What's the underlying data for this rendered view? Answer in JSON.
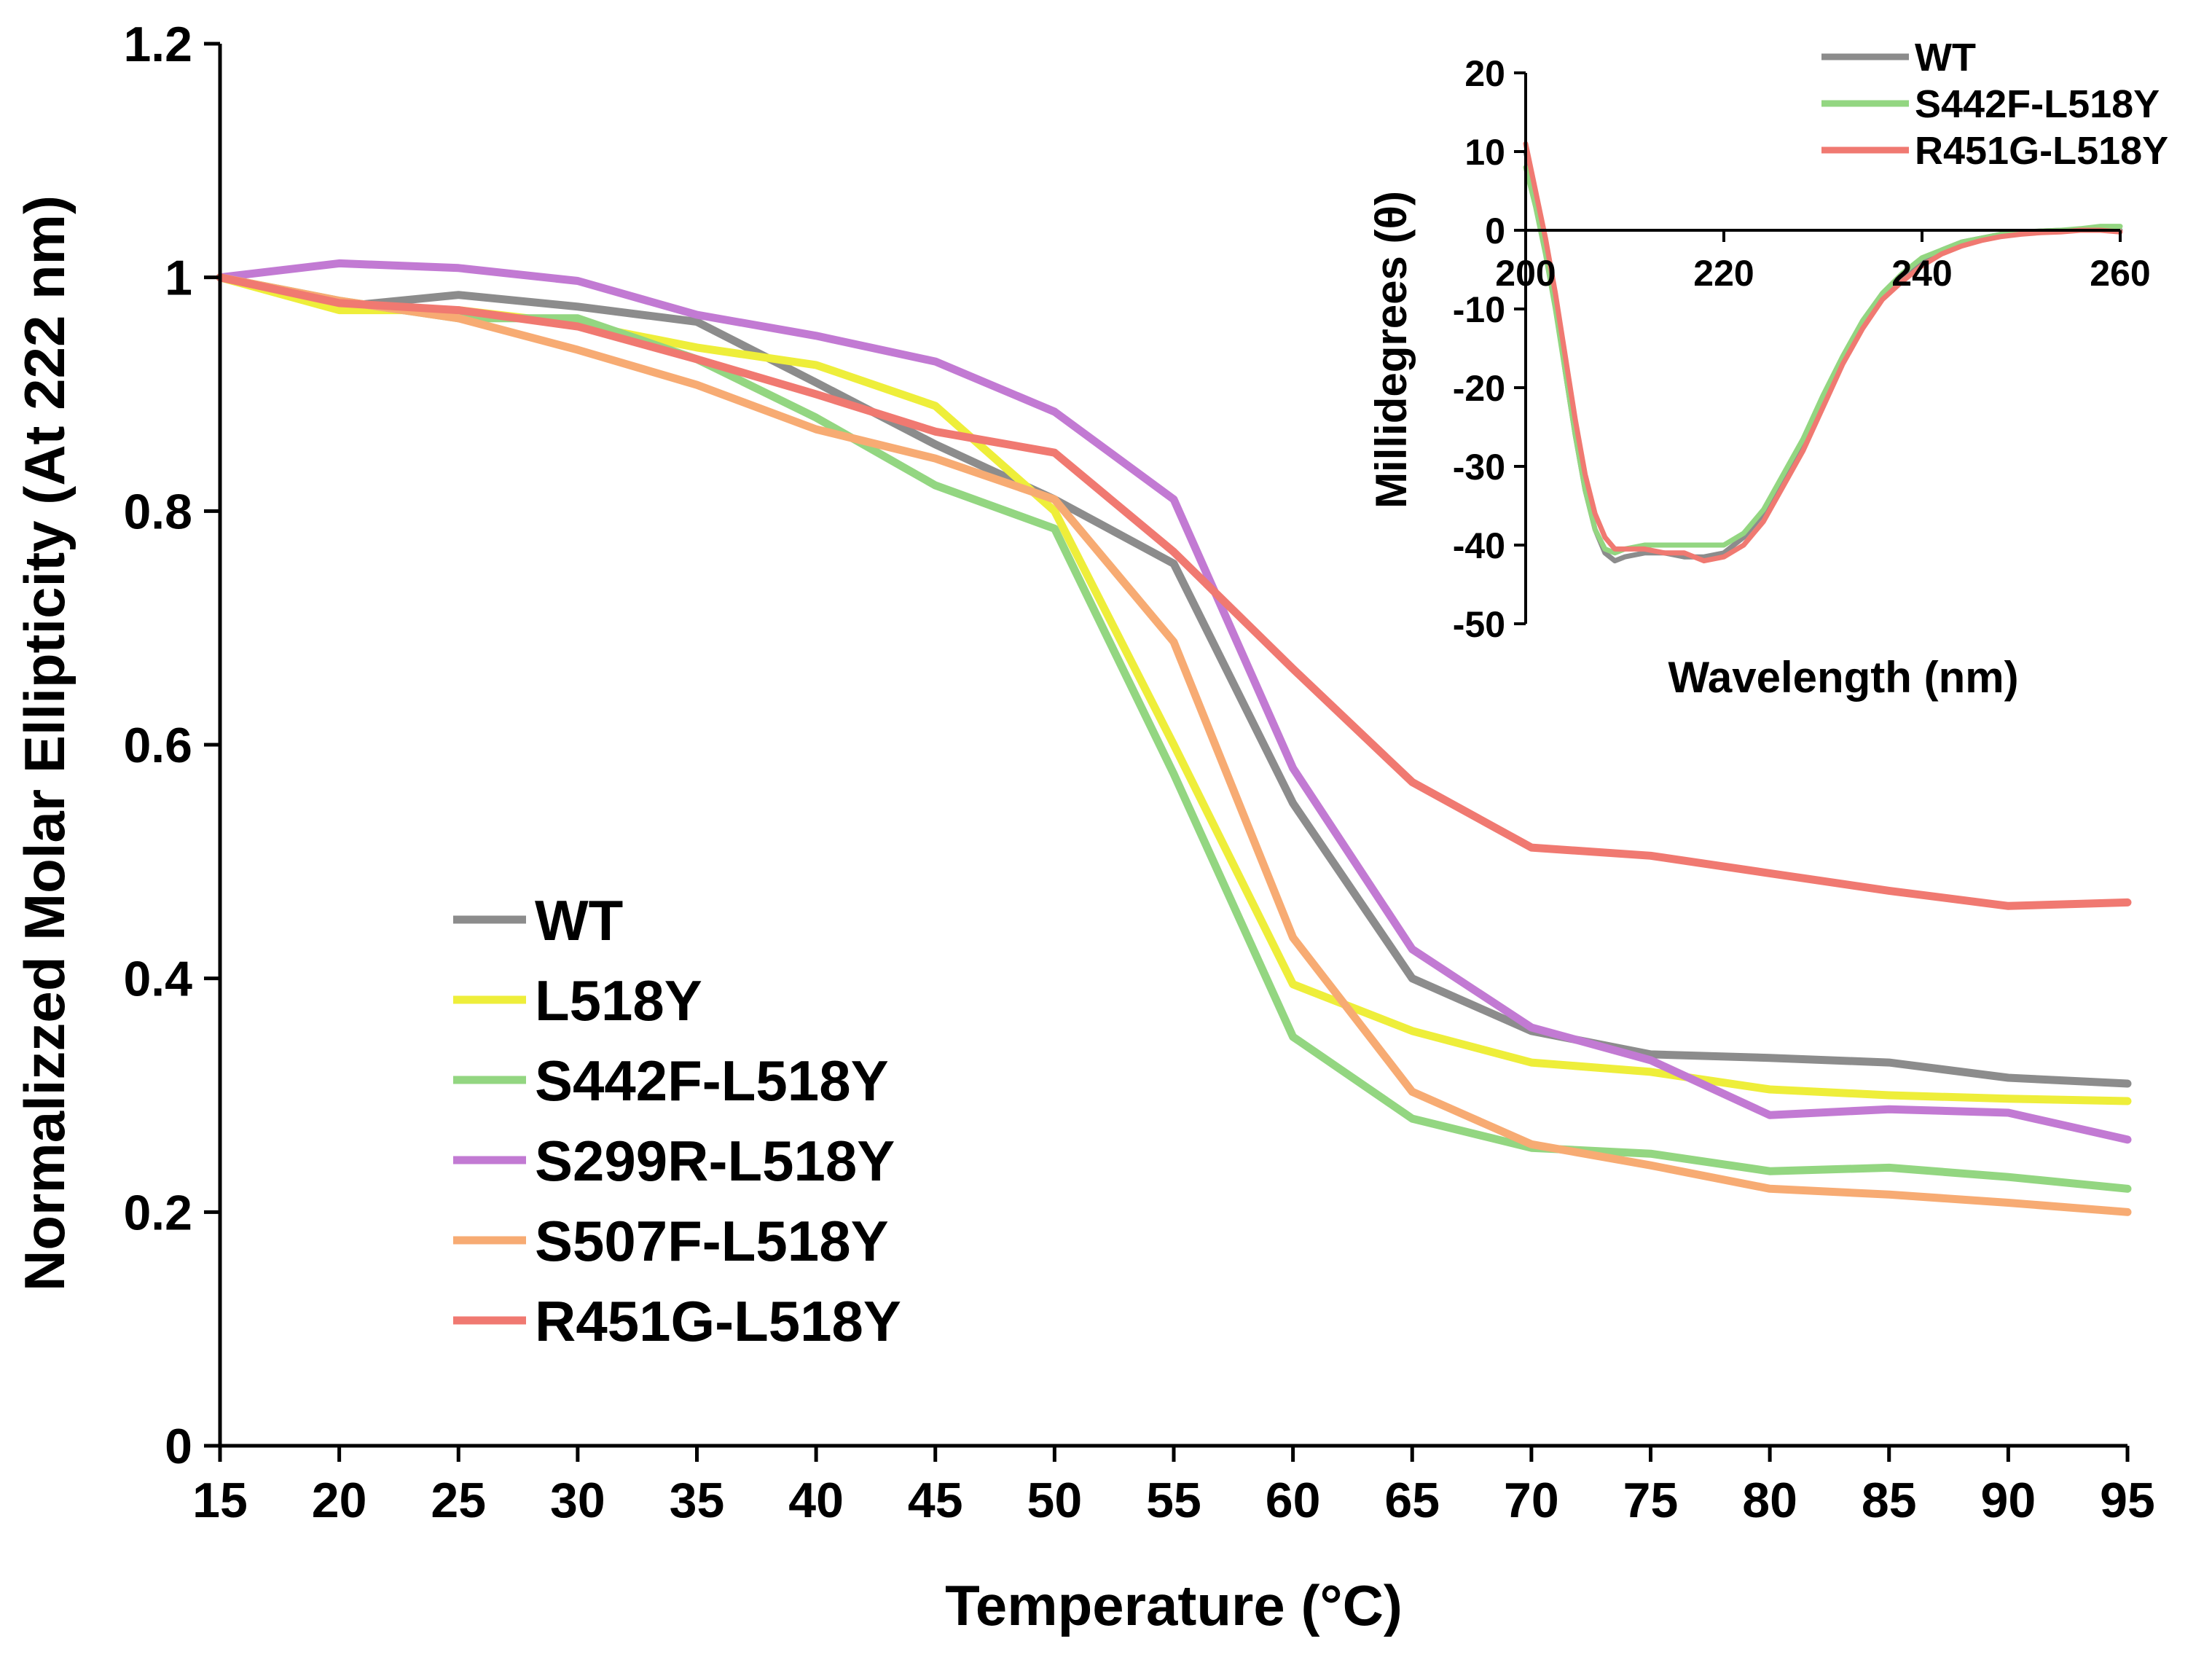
{
  "chart_data": [
    {
      "id": "melting",
      "type": "line",
      "title": "",
      "xlabel": "Temperature (°C)",
      "ylabel": "Normalizzed Molar Ellipticity (At 222 nm)",
      "xlim": [
        15,
        95
      ],
      "ylim": [
        0,
        1.2
      ],
      "x_ticks": [
        15,
        20,
        25,
        30,
        35,
        40,
        45,
        50,
        55,
        60,
        65,
        70,
        75,
        80,
        85,
        90,
        95
      ],
      "x_tick_labels": [
        "15",
        "20",
        "25",
        "30",
        "35",
        "40",
        "45",
        "50",
        "55",
        "60",
        "65",
        "70",
        "75",
        "80",
        "85",
        "90",
        "95"
      ],
      "y_ticks": [
        0,
        0.2,
        0.4,
        0.6,
        0.8,
        1,
        1.2
      ],
      "y_tick_labels": [
        "0",
        "0.2",
        "0.4",
        "0.6",
        "0.8",
        "1",
        "1.2"
      ],
      "legend_position": "lower-left",
      "x": [
        15,
        20,
        25,
        30,
        35,
        40,
        45,
        50,
        55,
        60,
        65,
        70,
        75,
        80,
        85,
        90,
        95
      ],
      "series": [
        {
          "name": "WT",
          "color": "#8c8c8c",
          "values": [
            1.0,
            0.975,
            0.985,
            0.975,
            0.962,
            0.91,
            0.857,
            0.81,
            0.755,
            0.55,
            0.4,
            0.355,
            0.335,
            0.332,
            0.328,
            0.315,
            0.31
          ]
        },
        {
          "name": "L518Y",
          "color": "#eeee3a",
          "values": [
            1.0,
            0.972,
            0.972,
            0.96,
            0.94,
            0.925,
            0.89,
            0.8,
            0.6,
            0.395,
            0.355,
            0.328,
            0.32,
            0.305,
            0.3,
            0.297,
            0.295
          ]
        },
        {
          "name": "S442F-L518Y",
          "color": "#93d681",
          "values": [
            1.0,
            0.98,
            0.965,
            0.965,
            0.93,
            0.88,
            0.822,
            0.785,
            0.575,
            0.35,
            0.28,
            0.255,
            0.25,
            0.235,
            0.238,
            0.23,
            0.22
          ]
        },
        {
          "name": "S299R-L518Y",
          "color": "#c27ad3",
          "values": [
            1.0,
            1.012,
            1.008,
            0.997,
            0.968,
            0.95,
            0.928,
            0.885,
            0.81,
            0.58,
            0.425,
            0.358,
            0.33,
            0.283,
            0.288,
            0.285,
            0.262
          ]
        },
        {
          "name": "S507F-L518Y",
          "color": "#f7ab73",
          "values": [
            1.0,
            0.98,
            0.965,
            0.938,
            0.908,
            0.87,
            0.845,
            0.81,
            0.688,
            0.435,
            0.303,
            0.258,
            0.24,
            0.22,
            0.215,
            0.208,
            0.2
          ]
        },
        {
          "name": "R451G-L518Y",
          "color": "#f07971",
          "values": [
            1.0,
            0.978,
            0.972,
            0.958,
            0.93,
            0.9,
            0.868,
            0.85,
            0.765,
            0.665,
            0.568,
            0.512,
            0.505,
            0.49,
            0.475,
            0.462,
            0.465
          ]
        }
      ]
    },
    {
      "id": "inset",
      "type": "line",
      "title": "",
      "xlabel": "Wavelength (nm)",
      "ylabel": "Millidegrees (θ)",
      "xlim": [
        200,
        260
      ],
      "ylim": [
        -50,
        20
      ],
      "x_ticks": [
        200,
        220,
        240,
        260
      ],
      "x_tick_labels": [
        "200",
        "220",
        "240",
        "260"
      ],
      "y_ticks": [
        -50,
        -40,
        -30,
        -20,
        -10,
        0,
        10,
        20
      ],
      "y_tick_labels": [
        "-50",
        "-40",
        "-30",
        "-20",
        "-10",
        "0",
        "10",
        "20"
      ],
      "legend_position": "top-right",
      "series": [
        {
          "name": "WT",
          "color": "#8c8c8c",
          "x": [
            200,
            201,
            202,
            203,
            204,
            205,
            206,
            207,
            208,
            209,
            210,
            212,
            214,
            216,
            218,
            220,
            222,
            224,
            226,
            228,
            230,
            232,
            234,
            236,
            238,
            240,
            242,
            244,
            246,
            248,
            250,
            252,
            254,
            256,
            258,
            260
          ],
          "values": [
            10,
            4,
            -2,
            -9,
            -18,
            -26,
            -33,
            -38,
            -41,
            -42,
            -41.5,
            -41,
            -41,
            -41.5,
            -41.5,
            -41,
            -39,
            -36,
            -31.5,
            -27,
            -21.5,
            -16.5,
            -12,
            -8.5,
            -6,
            -4,
            -2.5,
            -1.5,
            -1,
            -0.5,
            -0.3,
            -0.1,
            0,
            0,
            0,
            0
          ]
        },
        {
          "name": "S442F-L518Y",
          "color": "#93d681",
          "x": [
            200,
            201,
            202,
            203,
            204,
            205,
            206,
            207,
            208,
            209,
            210,
            212,
            214,
            216,
            218,
            220,
            222,
            224,
            226,
            228,
            230,
            232,
            234,
            236,
            238,
            240,
            242,
            244,
            246,
            248,
            250,
            252,
            254,
            256,
            258,
            260
          ],
          "values": [
            8,
            3,
            -3,
            -10,
            -18,
            -26,
            -33,
            -38,
            -40.5,
            -41,
            -40.5,
            -40,
            -40,
            -40,
            -40,
            -40,
            -38.5,
            -35.5,
            -31,
            -26.5,
            -21,
            -16,
            -11.5,
            -8,
            -5.5,
            -3.5,
            -2.5,
            -1.5,
            -1,
            -0.5,
            -0.2,
            -0.1,
            0,
            0.2,
            0.5,
            0.5
          ]
        },
        {
          "name": "R451G-L518Y",
          "color": "#f07971",
          "x": [
            200,
            201,
            202,
            203,
            204,
            205,
            206,
            207,
            208,
            209,
            210,
            212,
            214,
            216,
            218,
            220,
            222,
            224,
            226,
            228,
            230,
            232,
            234,
            236,
            238,
            240,
            242,
            244,
            246,
            248,
            250,
            252,
            254,
            256,
            258,
            260
          ],
          "values": [
            11,
            5,
            -1,
            -8,
            -16,
            -24,
            -31,
            -36,
            -39,
            -40.5,
            -40.5,
            -40.5,
            -41,
            -41,
            -42,
            -41.5,
            -40,
            -37,
            -32.5,
            -28,
            -22.5,
            -17,
            -12.5,
            -8.8,
            -6.5,
            -4.5,
            -3,
            -2,
            -1.3,
            -0.8,
            -0.5,
            -0.3,
            -0.2,
            0,
            0,
            -0.2
          ]
        }
      ]
    }
  ]
}
